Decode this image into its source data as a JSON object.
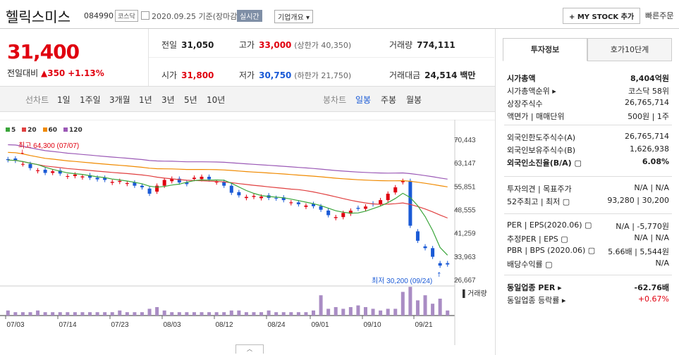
{
  "header": {
    "name": "헬릭스미스",
    "code": "084990",
    "market": "코스닥",
    "date": "2020.09.25 기준(장마감)",
    "realtime": "실시간",
    "company_info": "기업개요",
    "my_stock": "+ MY STOCK 추가",
    "quick_order": "빠른주문"
  },
  "price": {
    "current": "31,400",
    "change_label": "전일대비",
    "change_value": "▲350",
    "change_pct": "+1.13%"
  },
  "stats": {
    "prev": {
      "label": "전일",
      "value": "31,050"
    },
    "high": {
      "label": "고가",
      "value": "33,000",
      "extra": "(상한가 40,350)"
    },
    "volume": {
      "label": "거래량",
      "value": "774,111"
    },
    "open": {
      "label": "시가",
      "value": "31,800"
    },
    "low": {
      "label": "저가",
      "value": "30,750",
      "extra": "(하한가 21,750)"
    },
    "amount": {
      "label": "거래대금",
      "value": "24,514",
      "unit": "백만"
    }
  },
  "period_tabs": [
    "선차트",
    "1일",
    "1주일",
    "3개월",
    "1년",
    "3년",
    "5년",
    "10년"
  ],
  "candle_tabs": [
    "봉차트",
    "일봉",
    "주봉",
    "월봉"
  ],
  "chart_data": {
    "type": "candlestick",
    "legend": [
      "5",
      "20",
      "60",
      "120"
    ],
    "legend_colors": [
      "#3aa53a",
      "#e04040",
      "#f08a00",
      "#9b59b6"
    ],
    "y_ticks": [
      "70,443",
      "63,147",
      "55,851",
      "48,555",
      "41,259",
      "33,963",
      "26,667"
    ],
    "x_ticks": [
      "07/03",
      "07/14",
      "07/23",
      "08/03",
      "08/12",
      "08/24",
      "09/01",
      "09/10",
      "09/21"
    ],
    "high_label": "최고 64,300 (07/07)",
    "low_label": "최저 30,200 (09/24)",
    "volume_label": "거래량",
    "ylim": [
      26667,
      70443
    ],
    "closes": [
      64000,
      63800,
      62800,
      61500,
      60800,
      60000,
      60500,
      59800,
      59000,
      59500,
      58900,
      58500,
      58000,
      57800,
      57200,
      57500,
      56800,
      56000,
      55500,
      53500,
      56000,
      57800,
      58200,
      57000,
      56500,
      58500,
      58800,
      58000,
      57200,
      56000,
      53800,
      53000,
      52500,
      52800,
      52600,
      52200,
      52000,
      51500,
      50800,
      50200,
      49800,
      49600,
      48500,
      46800,
      46200,
      47500,
      48200,
      48800,
      49500,
      50200,
      51500,
      53500,
      55500,
      57500,
      43500,
      38800,
      36500,
      33800,
      31050,
      31400
    ],
    "volumes": [
      3,
      2,
      2,
      2,
      3,
      2,
      2,
      2,
      2,
      2,
      2,
      2,
      2,
      2,
      2,
      3,
      2,
      2,
      2,
      4,
      5,
      3,
      2,
      2,
      2,
      2,
      2,
      2,
      2,
      2,
      3,
      3,
      2,
      2,
      2,
      3,
      2,
      2,
      2,
      2,
      2,
      3,
      12,
      4,
      5,
      4,
      5,
      6,
      5,
      4,
      3,
      4,
      4,
      14,
      17,
      9,
      12,
      7,
      10,
      3
    ]
  },
  "side": {
    "tabs": [
      "투자정보",
      "호가10단계"
    ],
    "rows1": [
      [
        "시가총액",
        "8,404억원"
      ],
      [
        "시가총액순위 ▸",
        "코스닥 58위"
      ],
      [
        "상장주식수",
        "26,765,714"
      ],
      [
        "액면가 | 매매단위",
        "500원 | 1주"
      ]
    ],
    "rows2": [
      [
        "외국인한도주식수(A)",
        "26,765,714"
      ],
      [
        "외국인보유주식수(B)",
        "1,626,938"
      ],
      [
        "외국인소진율(B/A) ▢",
        "6.08%"
      ]
    ],
    "rows3": [
      [
        "투자의견 | 목표주가",
        "N/A | N/A"
      ],
      [
        "52주최고 | 최저 ▢",
        "93,280 | 30,200"
      ]
    ],
    "rows4": [
      [
        "PER | EPS(2020.06) ▢",
        "N/A | -5,770원"
      ],
      [
        "추정PER | EPS ▢",
        "N/A | N/A"
      ],
      [
        "PBR | BPS (2020.06) ▢",
        "5.66배 | 5,544원"
      ],
      [
        "배당수익률 ▢",
        "N/A"
      ]
    ],
    "rows5": [
      [
        "동일업종 PER ▸",
        "-62.76배"
      ],
      [
        "동일업종 등락률 ▸",
        "+0.67%"
      ]
    ]
  }
}
